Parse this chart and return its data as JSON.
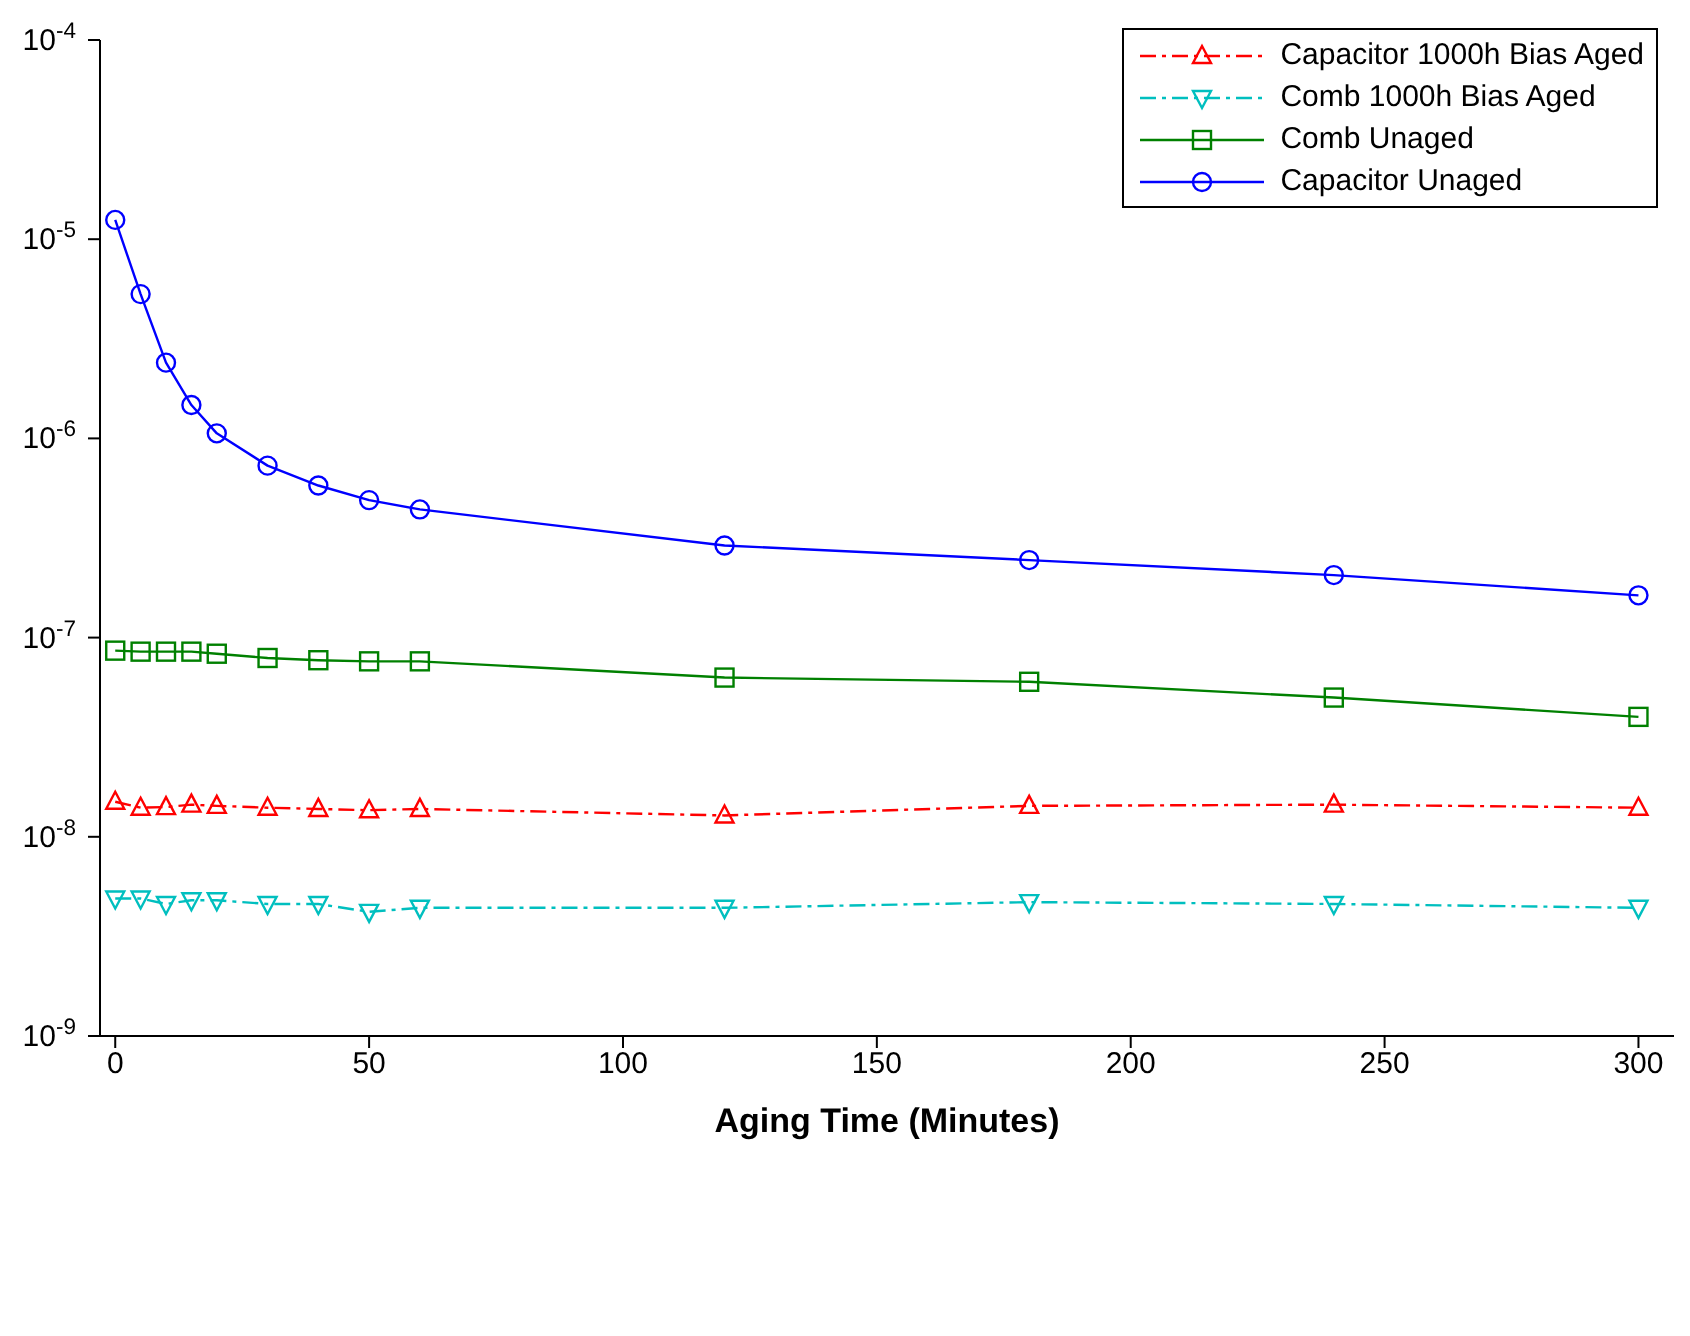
{
  "chart_data": {
    "type": "line",
    "xlabel": "Aging Time (Minutes)",
    "log": "y",
    "grid": false,
    "legend": "top right",
    "xlim": [
      -3,
      307
    ],
    "xticks": [
      0,
      50,
      100,
      150,
      200,
      250,
      300
    ],
    "ylim": [
      1e-09,
      0.0001
    ],
    "yticks": [
      {
        "value": 1e-09,
        "label": "10$^{-9}$"
      },
      {
        "value": 1e-08,
        "label": "10$^{-8}$"
      },
      {
        "value": 1e-07,
        "label": "10$^{-7}$"
      },
      {
        "value": 1e-06,
        "label": "10$^{-6}$"
      },
      {
        "value": 1e-05,
        "label": "10$^{-5}$"
      },
      {
        "value": 0.0001,
        "label": "10$^{-4}$"
      }
    ],
    "x": [
      0,
      5,
      10,
      15,
      20,
      30,
      40,
      50,
      60,
      120,
      180,
      240,
      300
    ],
    "series": [
      {
        "name": "Capacitor 1000h Bias Aged",
        "color": "#ff0000",
        "marker": "triangle",
        "line_style": "dashdot",
        "values": [
          1.5e-08,
          1.4e-08,
          1.41e-08,
          1.45e-08,
          1.43e-08,
          1.4e-08,
          1.38e-08,
          1.36e-08,
          1.38e-08,
          1.28e-08,
          1.43e-08,
          1.45e-08,
          1.4e-08
        ]
      },
      {
        "name": "Comb 1000h Bias Aged",
        "color": "#00bfbf",
        "marker": "triangle-down",
        "line_style": "dashdot",
        "values": [
          4.9e-09,
          4.9e-09,
          4.6e-09,
          4.8e-09,
          4.8e-09,
          4.6e-09,
          4.6e-09,
          4.2e-09,
          4.4e-09,
          4.4e-09,
          4.7e-09,
          4.6e-09,
          4.4e-09
        ]
      },
      {
        "name": "Comb Unaged",
        "color": "#008000",
        "marker": "square",
        "line_style": "solid",
        "values": [
          8.6e-08,
          8.5e-08,
          8.5e-08,
          8.5e-08,
          8.3e-08,
          7.9e-08,
          7.7e-08,
          7.6e-08,
          7.6e-08,
          6.3e-08,
          6e-08,
          5e-08,
          4e-08
        ]
      },
      {
        "name": "Capacitor Unaged",
        "color": "#0000ff",
        "marker": "circle",
        "line_style": "solid",
        "values": [
          1.25e-05,
          5.3e-06,
          2.4e-06,
          1.47e-06,
          1.06e-06,
          7.3e-07,
          5.8e-07,
          4.9e-07,
          4.4e-07,
          2.9e-07,
          2.45e-07,
          2.06e-07,
          1.63e-07
        ]
      }
    ]
  }
}
